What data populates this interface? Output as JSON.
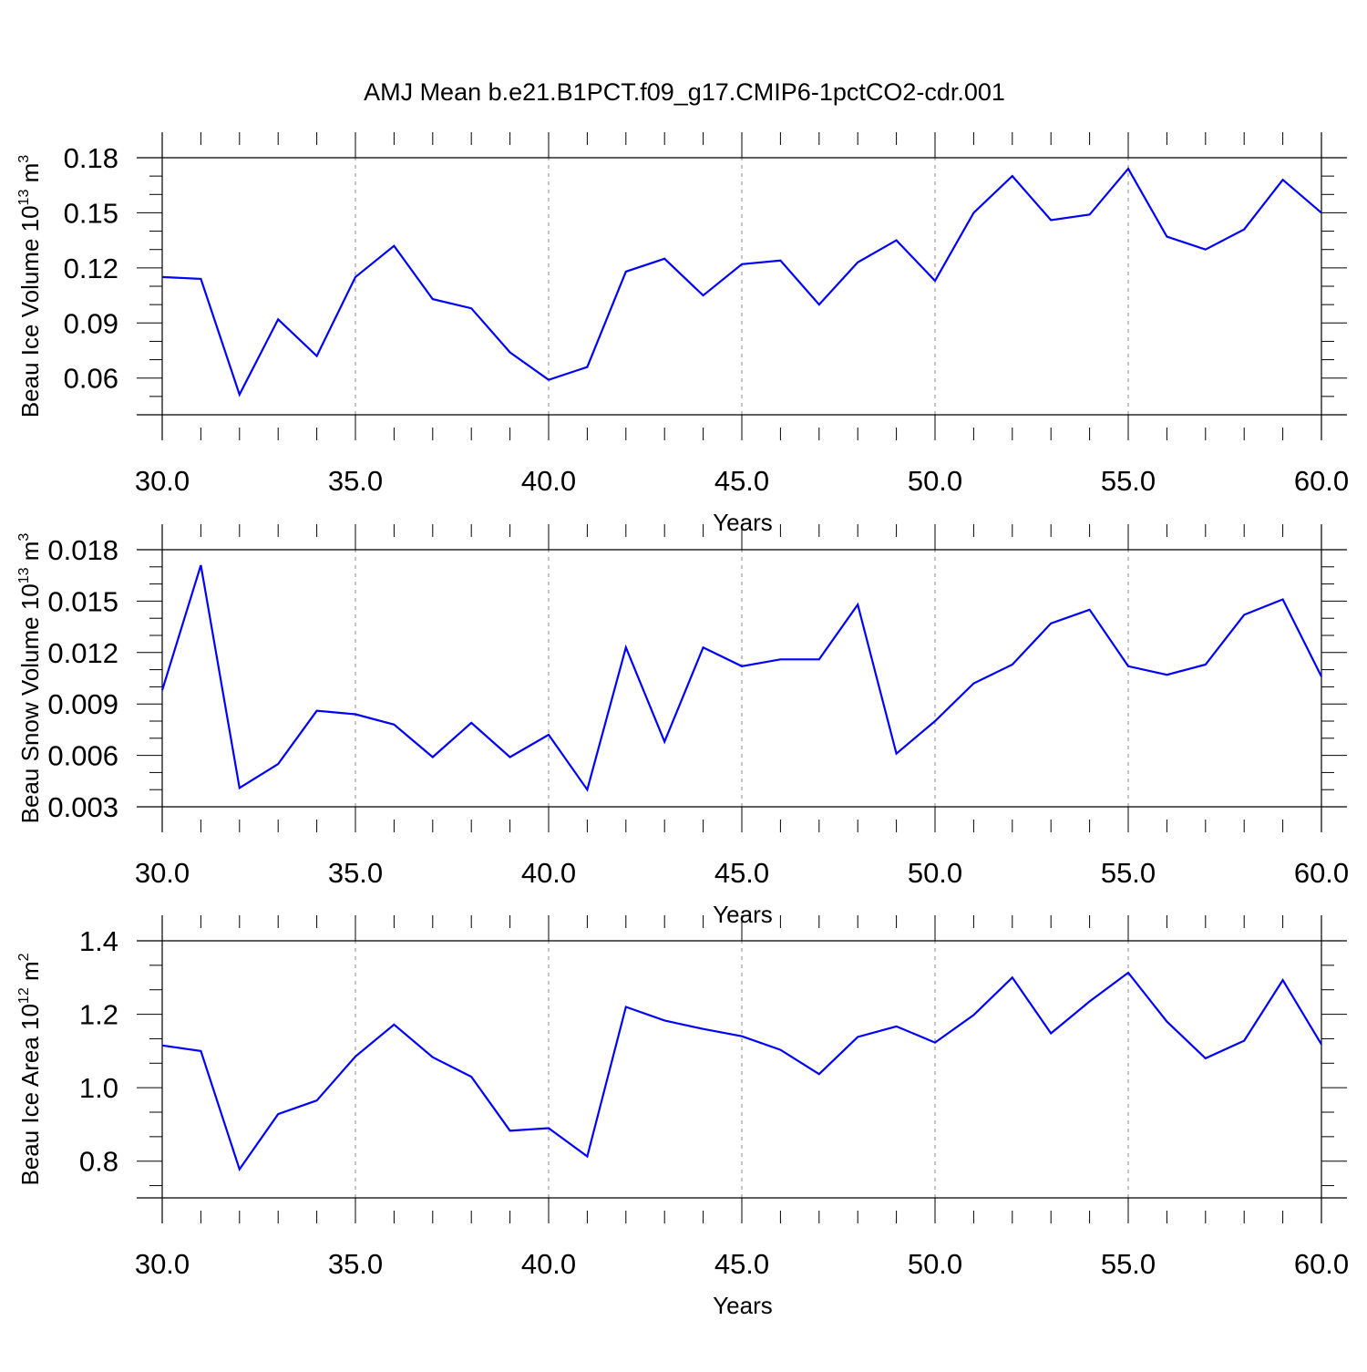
{
  "title": "AMJ Mean b.e21.B1PCT.f09_g17.CMIP6-1pctCO2-cdr.001",
  "chart_data": [
    {
      "type": "line",
      "ylabel_main": "Beau Ice Volume 10",
      "ylabel_exp": "13",
      "ylabel_unit": " m",
      "ylabel_unit_exp": "3",
      "xlabel": "Years",
      "xlim": [
        30,
        60
      ],
      "ylim": [
        0.04,
        0.18
      ],
      "yticks": [
        0.06,
        0.09,
        0.12,
        0.15,
        0.18
      ],
      "ytick_labels": [
        "0.06",
        "0.09",
        "0.12",
        "0.15",
        "0.18"
      ],
      "xticks": [
        30,
        35,
        40,
        45,
        50,
        55,
        60
      ],
      "xtick_labels": [
        "30.0",
        "35.0",
        "40.0",
        "45.0",
        "50.0",
        "55.0",
        "60.0"
      ],
      "grid": "vertical dashed at major x ticks",
      "color": "#0000ff",
      "x": [
        30,
        31,
        32,
        33,
        34,
        35,
        36,
        37,
        38,
        39,
        40,
        41,
        42,
        43,
        44,
        45,
        46,
        47,
        48,
        49,
        50,
        51,
        52,
        53,
        54,
        55,
        56,
        57,
        58,
        59,
        60
      ],
      "y": [
        0.115,
        0.114,
        0.051,
        0.092,
        0.072,
        0.115,
        0.132,
        0.103,
        0.098,
        0.074,
        0.059,
        0.066,
        0.118,
        0.125,
        0.105,
        0.122,
        0.124,
        0.1,
        0.123,
        0.135,
        0.113,
        0.15,
        0.17,
        0.146,
        0.149,
        0.174,
        0.137,
        0.13,
        0.141,
        0.168,
        0.15
      ]
    },
    {
      "type": "line",
      "ylabel_main": "Beau Snow Volume 10",
      "ylabel_exp": "13",
      "ylabel_unit": " m",
      "ylabel_unit_exp": "3",
      "xlabel": "Years",
      "xlim": [
        30,
        60
      ],
      "ylim": [
        0.003,
        0.018
      ],
      "yticks": [
        0.003,
        0.006,
        0.009,
        0.012,
        0.015,
        0.018
      ],
      "ytick_labels": [
        "0.003",
        "0.006",
        "0.009",
        "0.012",
        "0.015",
        "0.018"
      ],
      "xticks": [
        30,
        35,
        40,
        45,
        50,
        55,
        60
      ],
      "xtick_labels": [
        "30.0",
        "35.0",
        "40.0",
        "45.0",
        "50.0",
        "55.0",
        "60.0"
      ],
      "grid": "vertical dashed at major x ticks",
      "color": "#0000ff",
      "x": [
        30,
        31,
        32,
        33,
        34,
        35,
        36,
        37,
        38,
        39,
        40,
        41,
        42,
        43,
        44,
        45,
        46,
        47,
        48,
        49,
        50,
        51,
        52,
        53,
        54,
        55,
        56,
        57,
        58,
        59,
        60
      ],
      "y": [
        0.0098,
        0.0171,
        0.0041,
        0.0055,
        0.0086,
        0.0084,
        0.0078,
        0.0059,
        0.0079,
        0.0059,
        0.0072,
        0.004,
        0.0123,
        0.0068,
        0.0123,
        0.0112,
        0.0116,
        0.0116,
        0.0148,
        0.0061,
        0.008,
        0.0102,
        0.0113,
        0.0137,
        0.0145,
        0.0112,
        0.0107,
        0.0113,
        0.0142,
        0.0151,
        0.0106
      ]
    },
    {
      "type": "line",
      "ylabel_main": "Beau Ice Area 10",
      "ylabel_exp": "12",
      "ylabel_unit": " m",
      "ylabel_unit_exp": "2",
      "xlabel": "Years",
      "xlim": [
        30,
        60
      ],
      "ylim": [
        0.7,
        1.4
      ],
      "yticks": [
        0.8,
        1.0,
        1.2,
        1.4
      ],
      "ytick_labels": [
        "0.8",
        "1.0",
        "1.2",
        "1.4"
      ],
      "xticks": [
        30,
        35,
        40,
        45,
        50,
        55,
        60
      ],
      "xtick_labels": [
        "30.0",
        "35.0",
        "40.0",
        "45.0",
        "50.0",
        "55.0",
        "60.0"
      ],
      "grid": "vertical dashed at major x ticks",
      "color": "#0000ff",
      "x": [
        30,
        31,
        32,
        33,
        34,
        35,
        36,
        37,
        38,
        39,
        40,
        41,
        42,
        43,
        44,
        45,
        46,
        47,
        48,
        49,
        50,
        51,
        52,
        53,
        54,
        55,
        56,
        57,
        58,
        59,
        60
      ],
      "y": [
        1.115,
        1.1,
        0.778,
        0.928,
        0.965,
        1.085,
        1.172,
        1.083,
        1.03,
        0.883,
        0.89,
        0.813,
        1.22,
        1.183,
        1.16,
        1.14,
        1.103,
        1.037,
        1.138,
        1.167,
        1.123,
        1.198,
        1.3,
        1.148,
        1.235,
        1.313,
        1.18,
        1.08,
        1.128,
        1.293,
        1.118
      ]
    }
  ]
}
